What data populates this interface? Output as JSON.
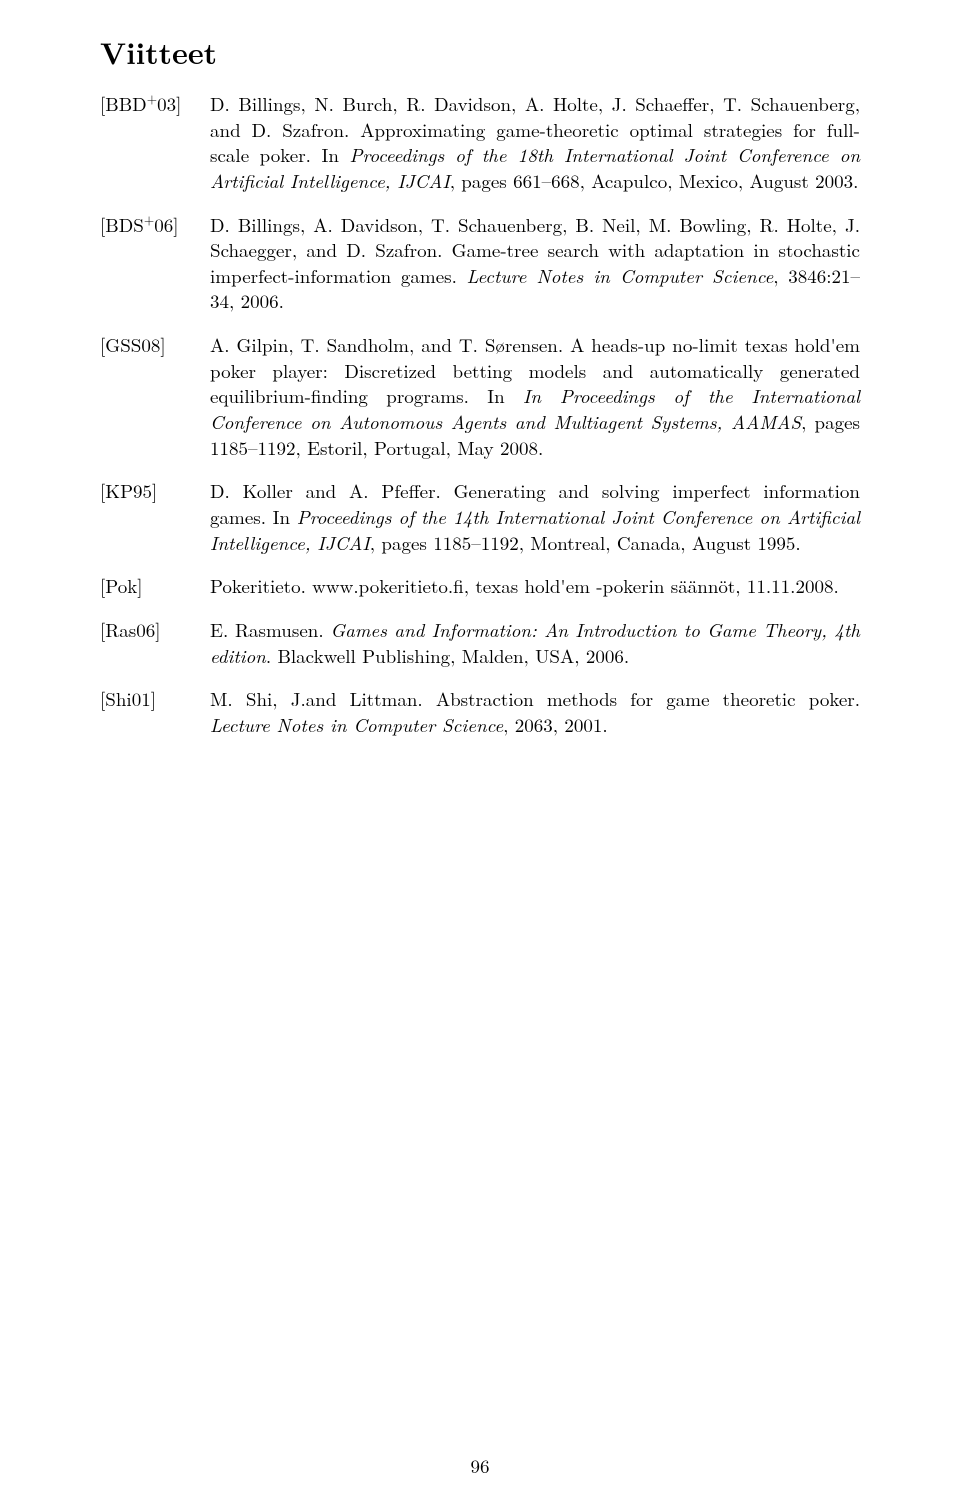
{
  "sectionTitle": "Viitteet",
  "pageNumber": "96",
  "references": [
    {
      "keyPrefix": "[BBD",
      "keySup": "+",
      "keySuffix": "03]",
      "pre": "D. Billings, N. Burch, R. Davidson, A. Holte, J. Schaeffer, T. Schauenberg, and D. Szafron. Approximating game-theoretic optimal strategies for full-scale poker. In ",
      "italic": "Proceedings of the 18th International Joint Conference on Artificial Intelligence, IJCAI",
      "post": ", pages 661–668, Acapulco, Mexico, August 2003."
    },
    {
      "keyPrefix": "[BDS",
      "keySup": "+",
      "keySuffix": "06]",
      "pre": "D. Billings, A. Davidson, T. Schauenberg, B. Neil, M. Bowling, R. Holte, J. Schaegger, and D. Szafron. Game-tree search with adaptation in stochastic imperfect-information games. ",
      "italic": "Lecture Notes in Computer Science",
      "post": ", 3846:21–34, 2006."
    },
    {
      "keyPrefix": "[GSS08]",
      "keySup": "",
      "keySuffix": "",
      "pre": "A. Gilpin, T. Sandholm, and T. Sørensen. A heads-up no-limit texas hold'em poker player: Discretized betting models and automatically generated equilibrium-finding programs. In ",
      "italic": "In Proceedings of the International Conference on Autonomous Agents and Multiagent Systems, AAMAS",
      "post": ", pages 1185–1192, Estoril, Portugal, May 2008."
    },
    {
      "keyPrefix": "[KP95]",
      "keySup": "",
      "keySuffix": "",
      "pre": "D. Koller and A. Pfeffer. Generating and solving imperfect information games. In ",
      "italic": "Proceedings of the 14th International Joint Conference on Artificial Intelligence, IJCAI",
      "post": ", pages 1185–1192, Montreal, Canada, August 1995."
    },
    {
      "keyPrefix": "[Pok]",
      "keySup": "",
      "keySuffix": "",
      "pre": "Pokeritieto. www.pokeritieto.fi, texas hold'em -pokerin säännöt, 11.11.2008.",
      "italic": "",
      "post": ""
    },
    {
      "keyPrefix": "[Ras06]",
      "keySup": "",
      "keySuffix": "",
      "pre": "E. Rasmusen. ",
      "italic": "Games and Information: An Introduction to Game Theory, 4th edition",
      "post": ". Blackwell Publishing, Malden, USA, 2006."
    },
    {
      "keyPrefix": "[Shi01]",
      "keySup": "",
      "keySuffix": "",
      "pre": "M. Shi, J.and Littman. Abstraction methods for game theoretic poker. ",
      "italic": "Lecture Notes in Computer Science",
      "post": ", 2063, 2001."
    }
  ]
}
